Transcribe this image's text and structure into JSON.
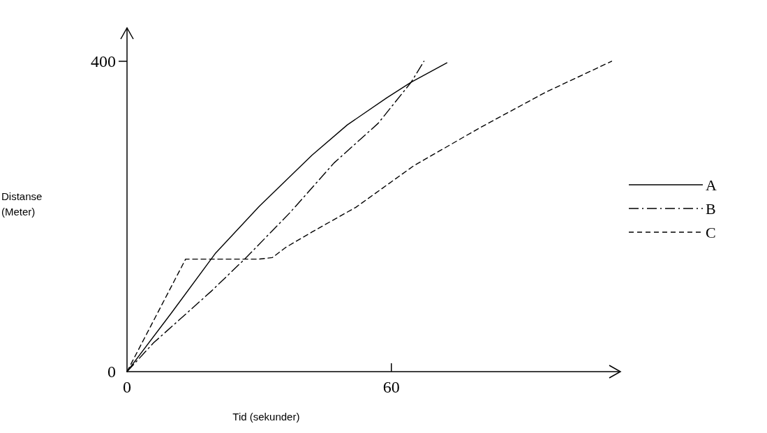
{
  "chart_data": {
    "type": "line",
    "xlabel": "Tid (sekunder)",
    "ylabel": "Distanse\n(Meter)",
    "xlim": [
      0,
      112
    ],
    "ylim": [
      0,
      443
    ],
    "xticks": [
      0,
      60
    ],
    "yticks": [
      0,
      400
    ],
    "grid": false,
    "legend": "right",
    "marker": "none",
    "series": [
      {
        "name": "A",
        "color": "#000000",
        "line_style": "solid",
        "x": [
          0,
          10,
          20,
          30,
          42,
          50,
          59,
          64.5,
          72.6
        ],
        "values": [
          0,
          75,
          152,
          213,
          279,
          318,
          353,
          373,
          398
        ]
      },
      {
        "name": "B",
        "color": "#000000",
        "line_style": "dashdot",
        "x": [
          0,
          6,
          19,
          26.7,
          37,
          47,
          57,
          64.5,
          67.4
        ],
        "values": [
          0,
          37,
          103,
          145,
          205,
          269,
          320,
          373,
          400
        ]
      },
      {
        "name": "C",
        "color": "#000000",
        "line_style": "dashed",
        "x": [
          0,
          13.3,
          30,
          33,
          36,
          42,
          52,
          65,
          80,
          95,
          110
        ],
        "values": [
          0,
          145,
          145,
          147,
          160,
          180,
          212,
          265,
          314,
          360,
          400
        ]
      }
    ]
  }
}
